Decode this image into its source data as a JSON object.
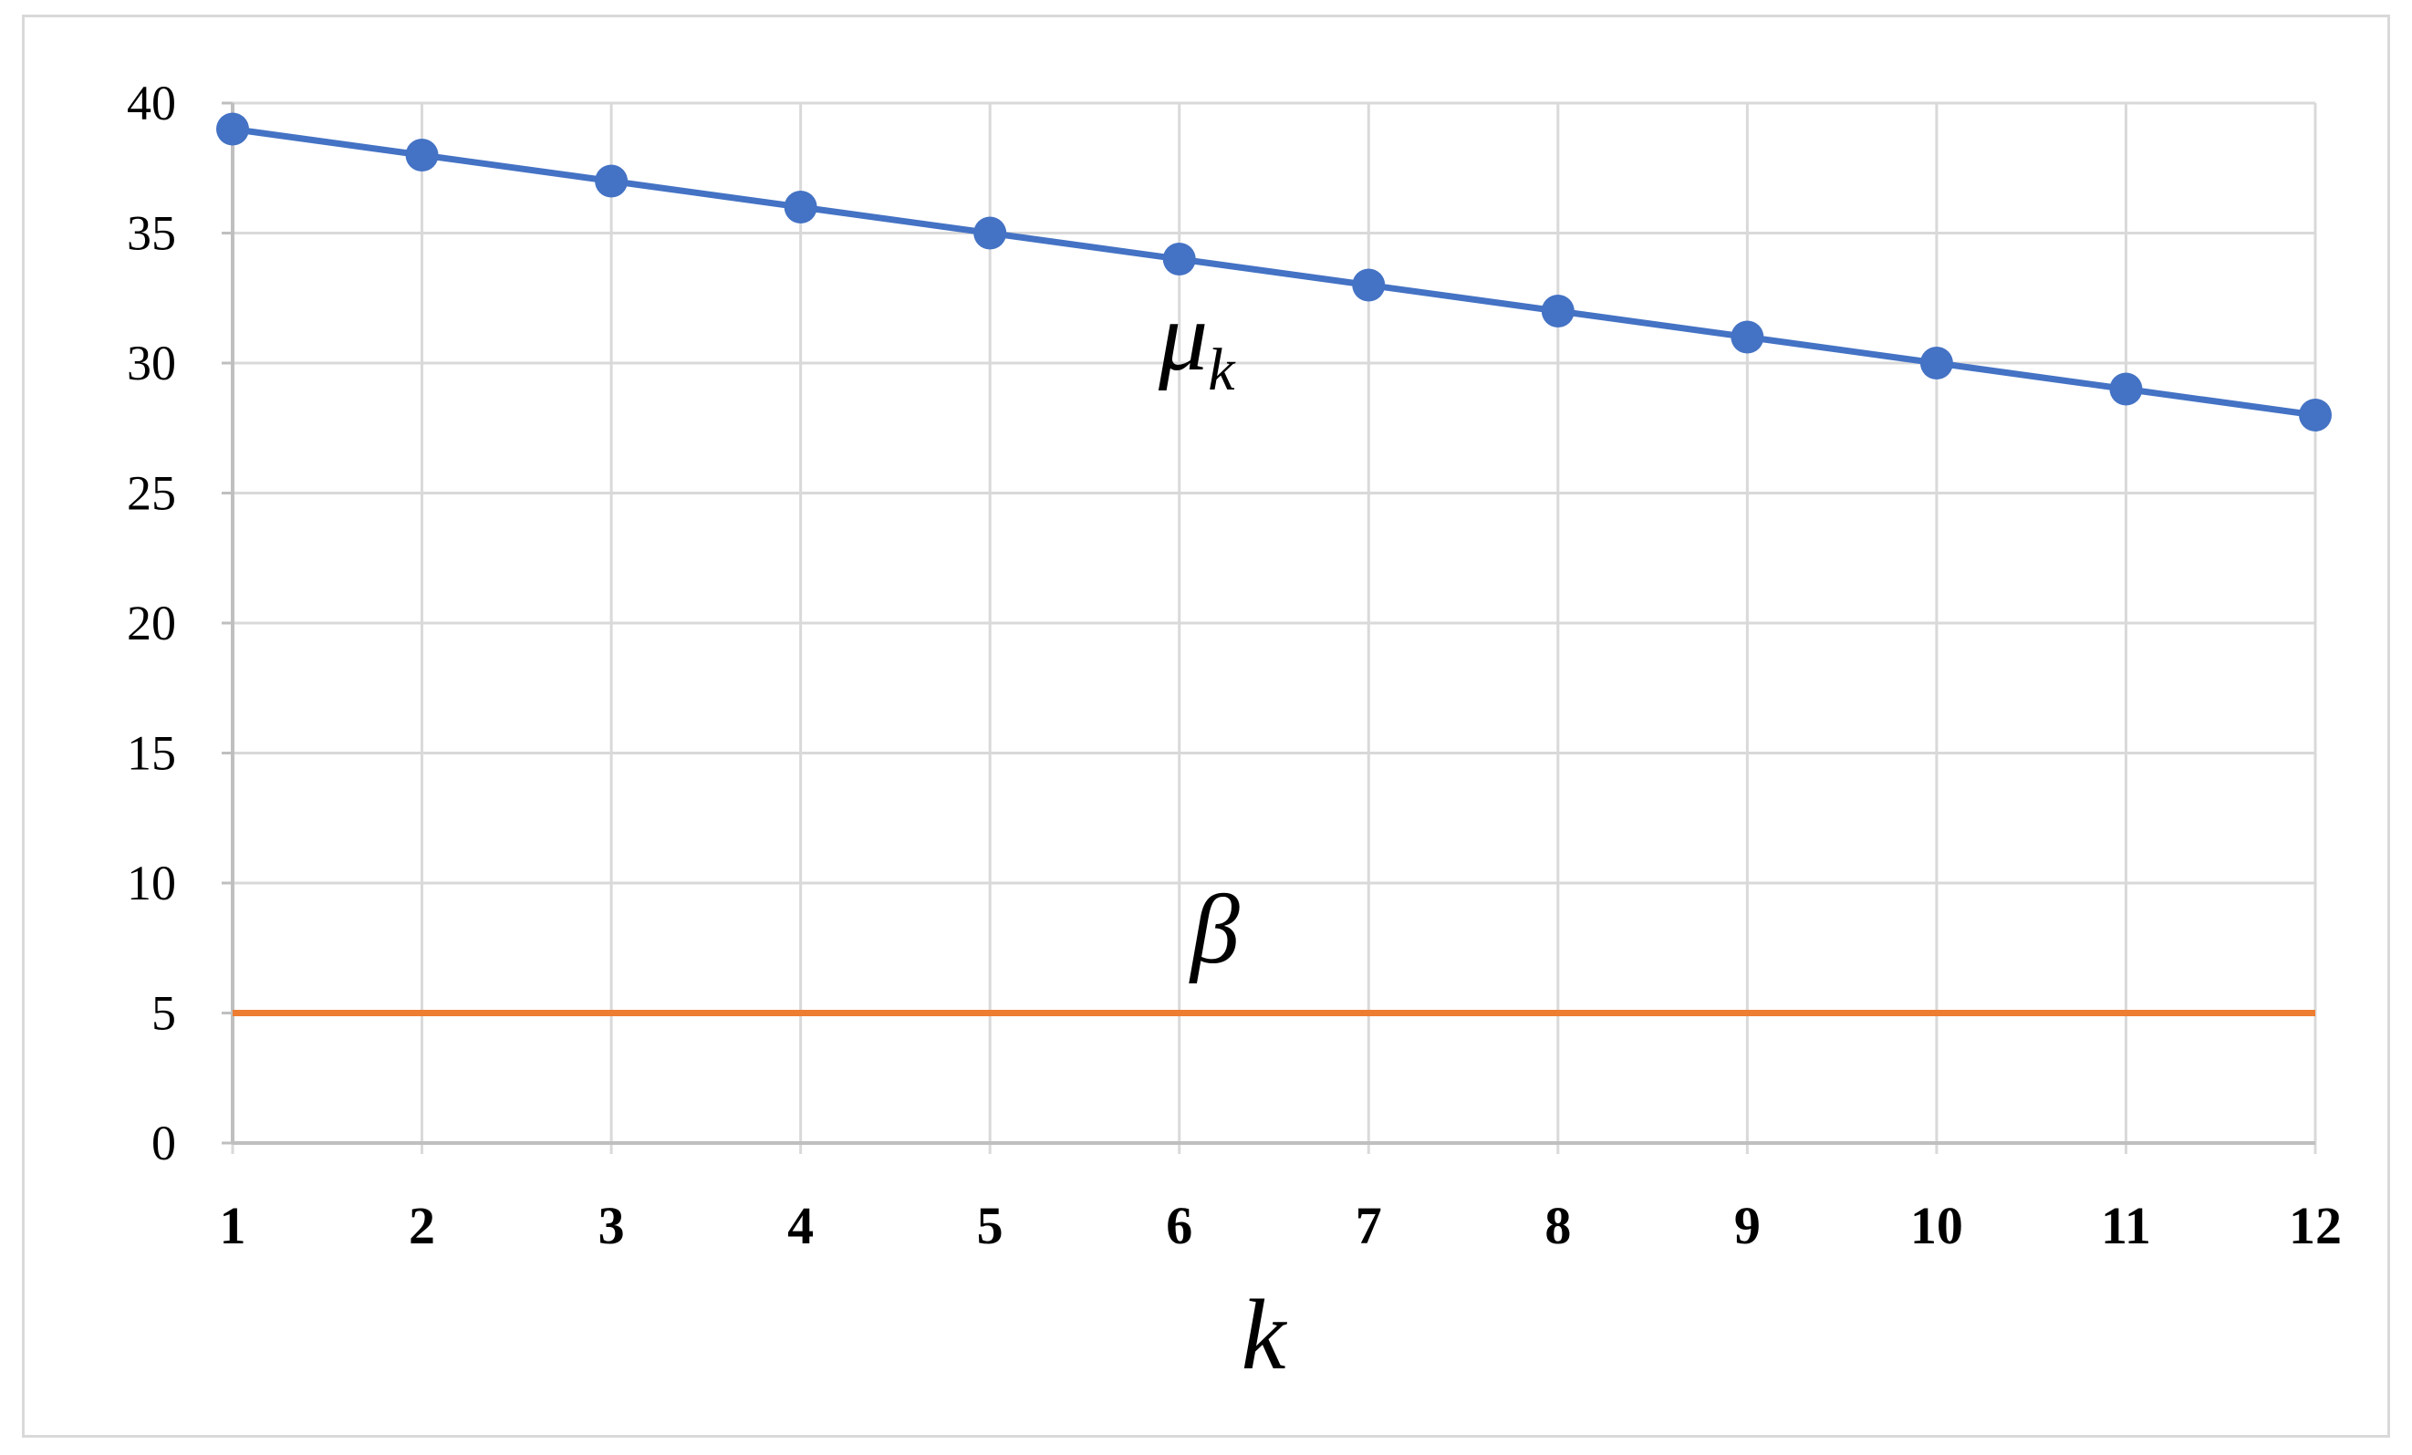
{
  "chart_data": {
    "type": "line",
    "x": [
      1,
      2,
      3,
      4,
      5,
      6,
      7,
      8,
      9,
      10,
      11,
      12
    ],
    "x_tick_labels": [
      "1",
      "2",
      "3",
      "4",
      "5",
      "6",
      "7",
      "8",
      "9",
      "10",
      "11",
      "12"
    ],
    "y_tick_labels": [
      "0",
      "5",
      "10",
      "15",
      "20",
      "25",
      "30",
      "35",
      "40"
    ],
    "ylim": [
      0,
      40
    ],
    "xlabel": "k",
    "ylabel": "",
    "title": "",
    "grid": true,
    "legend": "none",
    "series": [
      {
        "name": "μ",
        "subscript": "k",
        "color": "#4472C4",
        "markers": true,
        "values": [
          39,
          38,
          37,
          36,
          35,
          34,
          33,
          32,
          31,
          30,
          29,
          28
        ]
      },
      {
        "name": "β",
        "color": "#ED7D31",
        "markers": false,
        "values": [
          5,
          5,
          5,
          5,
          5,
          5,
          5,
          5,
          5,
          5,
          5,
          5
        ]
      }
    ],
    "colors": {
      "grid": "#d9d9d9",
      "axis": "#bfbfbf",
      "frame": "#d9d9d9"
    }
  }
}
